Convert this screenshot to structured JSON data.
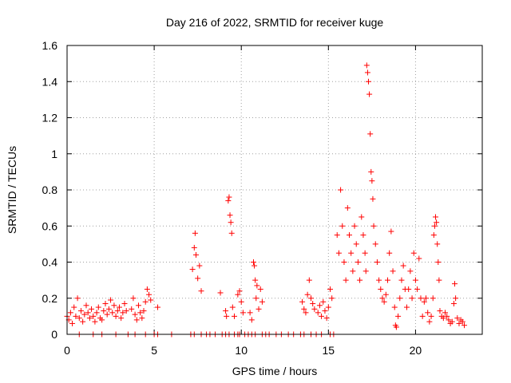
{
  "chart_data": {
    "type": "scatter",
    "title": "Day 216 of 2022, SRMTID for receiver kuge",
    "xlabel": "GPS time / hours",
    "ylabel": "SRMTID / TECUs",
    "xlim": [
      0,
      23.83
    ],
    "ylim": [
      0,
      1.6
    ],
    "x_ticks": [
      0,
      5,
      10,
      15,
      20
    ],
    "x_tick_labels": [
      "0",
      "5",
      "10",
      "15",
      "20"
    ],
    "y_ticks": [
      0,
      0.2,
      0.4,
      0.6,
      0.8,
      1.0,
      1.2,
      1.4,
      1.6
    ],
    "y_tick_labels": [
      "0",
      "0.2",
      "0.4",
      "0.6",
      "0.8",
      "1",
      "1.2",
      "1.4",
      "1.6"
    ],
    "grid": true,
    "marker": "+",
    "marker_color": "#ff0000",
    "series": [
      {
        "name": "SRMTID",
        "points": [
          [
            0.0,
            0.1
          ],
          [
            0.1,
            0.08
          ],
          [
            0.2,
            0.12
          ],
          [
            0.3,
            0.06
          ],
          [
            0.4,
            0.15
          ],
          [
            0.5,
            0.1
          ],
          [
            0.6,
            0.2
          ],
          [
            0.7,
            0.09
          ],
          [
            0.8,
            0.13
          ],
          [
            0.9,
            0.07
          ],
          [
            1.0,
            0.11
          ],
          [
            1.1,
            0.16
          ],
          [
            1.2,
            0.12
          ],
          [
            1.3,
            0.09
          ],
          [
            1.4,
            0.14
          ],
          [
            1.5,
            0.1
          ],
          [
            1.6,
            0.07
          ],
          [
            1.7,
            0.12
          ],
          [
            1.8,
            0.15
          ],
          [
            1.9,
            0.09
          ],
          [
            2.0,
            0.08
          ],
          [
            2.1,
            0.13
          ],
          [
            2.2,
            0.17
          ],
          [
            2.3,
            0.11
          ],
          [
            2.4,
            0.14
          ],
          [
            2.5,
            0.19
          ],
          [
            2.6,
            0.12
          ],
          [
            2.7,
            0.16
          ],
          [
            2.8,
            0.1
          ],
          [
            2.9,
            0.13
          ],
          [
            3.0,
            0.15
          ],
          [
            3.1,
            0.09
          ],
          [
            3.2,
            0.12
          ],
          [
            3.3,
            0.17
          ],
          [
            3.4,
            0.13
          ],
          [
            3.7,
            0.14
          ],
          [
            3.8,
            0.2
          ],
          [
            3.9,
            0.11
          ],
          [
            4.0,
            0.08
          ],
          [
            4.1,
            0.16
          ],
          [
            4.2,
            0.12
          ],
          [
            4.3,
            0.09
          ],
          [
            4.4,
            0.13
          ],
          [
            4.5,
            0.18
          ],
          [
            4.6,
            0.25
          ],
          [
            4.7,
            0.22
          ],
          [
            4.8,
            0.19
          ],
          [
            5.2,
            0.15
          ],
          [
            7.2,
            0.36
          ],
          [
            7.3,
            0.48
          ],
          [
            7.35,
            0.56
          ],
          [
            7.4,
            0.44
          ],
          [
            7.5,
            0.31
          ],
          [
            7.6,
            0.38
          ],
          [
            7.7,
            0.24
          ],
          [
            8.8,
            0.23
          ],
          [
            9.1,
            0.13
          ],
          [
            9.15,
            0.1
          ],
          [
            9.25,
            0.74
          ],
          [
            9.3,
            0.76
          ],
          [
            9.35,
            0.66
          ],
          [
            9.4,
            0.62
          ],
          [
            9.45,
            0.56
          ],
          [
            9.5,
            0.15
          ],
          [
            9.6,
            0.1
          ],
          [
            9.8,
            0.22
          ],
          [
            9.9,
            0.24
          ],
          [
            10.0,
            0.18
          ],
          [
            10.1,
            0.12
          ],
          [
            10.5,
            0.12
          ],
          [
            10.6,
            0.08
          ],
          [
            10.7,
            0.4
          ],
          [
            10.75,
            0.38
          ],
          [
            10.8,
            0.3
          ],
          [
            10.85,
            0.2
          ],
          [
            10.9,
            0.27
          ],
          [
            11.0,
            0.14
          ],
          [
            11.1,
            0.25
          ],
          [
            11.2,
            0.18
          ],
          [
            13.5,
            0.18
          ],
          [
            13.6,
            0.14
          ],
          [
            13.7,
            0.12
          ],
          [
            13.8,
            0.22
          ],
          [
            13.9,
            0.3
          ],
          [
            14.0,
            0.2
          ],
          [
            14.1,
            0.17
          ],
          [
            14.2,
            0.14
          ],
          [
            14.4,
            0.12
          ],
          [
            14.5,
            0.16
          ],
          [
            14.6,
            0.1
          ],
          [
            14.7,
            0.18
          ],
          [
            14.8,
            0.13
          ],
          [
            14.9,
            0.09
          ],
          [
            15.0,
            0.15
          ],
          [
            15.1,
            0.25
          ],
          [
            15.2,
            0.2
          ],
          [
            15.5,
            0.55
          ],
          [
            15.6,
            0.45
          ],
          [
            15.7,
            0.8
          ],
          [
            15.8,
            0.6
          ],
          [
            15.9,
            0.4
          ],
          [
            16.0,
            0.3
          ],
          [
            16.1,
            0.7
          ],
          [
            16.2,
            0.55
          ],
          [
            16.3,
            0.45
          ],
          [
            16.4,
            0.35
          ],
          [
            16.5,
            0.6
          ],
          [
            16.6,
            0.5
          ],
          [
            16.7,
            0.4
          ],
          [
            16.8,
            0.3
          ],
          [
            16.9,
            0.65
          ],
          [
            17.0,
            0.55
          ],
          [
            17.1,
            0.45
          ],
          [
            17.15,
            0.35
          ],
          [
            17.2,
            1.49
          ],
          [
            17.25,
            1.45
          ],
          [
            17.3,
            1.4
          ],
          [
            17.35,
            1.33
          ],
          [
            17.4,
            1.11
          ],
          [
            17.45,
            0.9
          ],
          [
            17.5,
            0.85
          ],
          [
            17.55,
            0.75
          ],
          [
            17.6,
            0.6
          ],
          [
            17.7,
            0.5
          ],
          [
            17.8,
            0.4
          ],
          [
            17.9,
            0.3
          ],
          [
            18.0,
            0.25
          ],
          [
            18.1,
            0.2
          ],
          [
            18.2,
            0.18
          ],
          [
            18.3,
            0.22
          ],
          [
            18.4,
            0.3
          ],
          [
            18.5,
            0.45
          ],
          [
            18.6,
            0.57
          ],
          [
            18.7,
            0.35
          ],
          [
            18.8,
            0.15
          ],
          [
            18.85,
            0.05
          ],
          [
            18.9,
            0.04
          ],
          [
            19.0,
            0.1
          ],
          [
            19.1,
            0.2
          ],
          [
            19.2,
            0.3
          ],
          [
            19.3,
            0.38
          ],
          [
            19.4,
            0.25
          ],
          [
            19.5,
            0.15
          ],
          [
            19.6,
            0.25
          ],
          [
            19.7,
            0.35
          ],
          [
            19.8,
            0.2
          ],
          [
            19.9,
            0.45
          ],
          [
            20.0,
            0.3
          ],
          [
            20.1,
            0.25
          ],
          [
            20.2,
            0.42
          ],
          [
            20.3,
            0.2
          ],
          [
            20.4,
            0.1
          ],
          [
            20.5,
            0.18
          ],
          [
            20.6,
            0.2
          ],
          [
            20.7,
            0.12
          ],
          [
            20.8,
            0.07
          ],
          [
            20.9,
            0.1
          ],
          [
            21.0,
            0.2
          ],
          [
            21.05,
            0.55
          ],
          [
            21.1,
            0.6
          ],
          [
            21.15,
            0.65
          ],
          [
            21.2,
            0.62
          ],
          [
            21.25,
            0.5
          ],
          [
            21.3,
            0.4
          ],
          [
            21.35,
            0.3
          ],
          [
            21.4,
            0.13
          ],
          [
            21.5,
            0.1
          ],
          [
            21.6,
            0.09
          ],
          [
            21.7,
            0.12
          ],
          [
            21.8,
            0.1
          ],
          [
            21.9,
            0.08
          ],
          [
            22.0,
            0.06
          ],
          [
            22.1,
            0.07
          ],
          [
            22.2,
            0.17
          ],
          [
            22.25,
            0.28
          ],
          [
            22.3,
            0.2
          ],
          [
            22.4,
            0.09
          ],
          [
            22.5,
            0.06
          ],
          [
            22.6,
            0.08
          ],
          [
            22.7,
            0.07
          ],
          [
            22.8,
            0.05
          ],
          [
            0.7,
            0.0
          ],
          [
            1.5,
            0.0
          ],
          [
            2.0,
            0.0
          ],
          [
            2.8,
            0.0
          ],
          [
            3.5,
            0.0
          ],
          [
            3.9,
            0.0
          ],
          [
            4.5,
            0.0
          ],
          [
            5.0,
            0.0
          ],
          [
            5.2,
            0.0
          ],
          [
            6.0,
            0.0
          ],
          [
            7.1,
            0.0
          ],
          [
            7.3,
            0.0
          ],
          [
            7.7,
            0.0
          ],
          [
            8.0,
            0.0
          ],
          [
            8.2,
            0.0
          ],
          [
            8.5,
            0.0
          ],
          [
            8.9,
            0.0
          ],
          [
            9.1,
            0.0
          ],
          [
            9.3,
            0.0
          ],
          [
            9.6,
            0.0
          ],
          [
            9.8,
            0.0
          ],
          [
            9.9,
            0.0
          ],
          [
            10.2,
            0.0
          ],
          [
            10.4,
            0.0
          ],
          [
            10.6,
            0.0
          ],
          [
            10.8,
            0.0
          ],
          [
            11.2,
            0.0
          ],
          [
            11.4,
            0.0
          ],
          [
            11.6,
            0.0
          ],
          [
            12.0,
            0.0
          ],
          [
            12.3,
            0.0
          ],
          [
            12.7,
            0.0
          ],
          [
            13.0,
            0.0
          ],
          [
            13.4,
            0.0
          ],
          [
            13.6,
            0.0
          ],
          [
            14.0,
            0.0
          ],
          [
            14.3,
            0.0
          ],
          [
            14.6,
            0.0
          ],
          [
            15.1,
            0.0
          ],
          [
            15.3,
            0.0
          ]
        ]
      }
    ]
  }
}
